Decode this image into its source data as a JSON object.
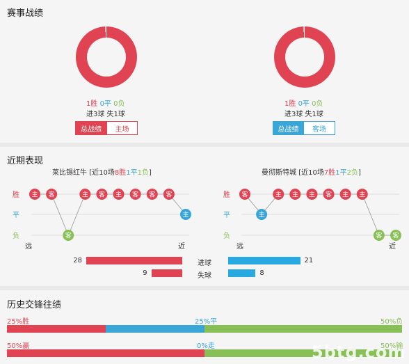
{
  "record": {
    "title": "赛事战绩",
    "left": {
      "result_line": [
        "1胜",
        "0平",
        "0负"
      ],
      "goals_line": "进3球 失1球",
      "btn_overall": "总战绩",
      "btn_venue": "主场",
      "ring_color": "#e04452"
    },
    "right": {
      "result_line": [
        "1胜",
        "0平",
        "0负"
      ],
      "goals_line": "进3球 失1球",
      "btn_overall": "总战绩",
      "btn_venue": "客场",
      "ring_color": "#e04452"
    }
  },
  "recent": {
    "title": "近期表现",
    "left": {
      "team": "莱比锡红牛",
      "summary_prefix": "[近10场",
      "wins": "8胜",
      "draws": "1平",
      "losses": "1负",
      "summary_suffix": "]",
      "row_labels": [
        "胜",
        "平",
        "负"
      ],
      "far": "远",
      "near": "近",
      "matches": [
        {
          "venue": "主",
          "result": "win"
        },
        {
          "venue": "客",
          "result": "win"
        },
        {
          "venue": "客",
          "result": "loss"
        },
        {
          "venue": "主",
          "result": "win"
        },
        {
          "venue": "客",
          "result": "win"
        },
        {
          "venue": "主",
          "result": "win"
        },
        {
          "venue": "客",
          "result": "win"
        },
        {
          "venue": "客",
          "result": "win"
        },
        {
          "venue": "客",
          "result": "win"
        },
        {
          "venue": "主",
          "result": "draw"
        }
      ]
    },
    "right": {
      "team": "曼彻斯特城",
      "summary_prefix": "[近10场",
      "wins": "7胜",
      "draws": "1平",
      "losses": "2负",
      "summary_suffix": "]",
      "row_labels": [
        "胜",
        "平",
        "负"
      ],
      "far": "远",
      "near": "近",
      "matches": [
        {
          "venue": "客",
          "result": "win"
        },
        {
          "venue": "主",
          "result": "draw"
        },
        {
          "venue": "主",
          "result": "win"
        },
        {
          "venue": "主",
          "result": "win"
        },
        {
          "venue": "主",
          "result": "win"
        },
        {
          "venue": "客",
          "result": "win"
        },
        {
          "venue": "主",
          "result": "win"
        },
        {
          "venue": "主",
          "result": "win"
        },
        {
          "venue": "客",
          "result": "loss"
        },
        {
          "venue": "客",
          "result": "loss"
        }
      ]
    },
    "goals": {
      "scored_label": "进球",
      "conceded_label": "失球",
      "left_scored": 28,
      "left_conceded": 9,
      "right_scored": 21,
      "right_conceded": 8,
      "max": 28
    }
  },
  "history": {
    "title": "历史交锋往绩",
    "row1": {
      "left": "25%胜",
      "mid": "25%平",
      "right": "50%负",
      "segments": [
        25,
        25,
        50
      ]
    },
    "row2": {
      "left": "50%赢",
      "mid": "0%走",
      "right": "50%输",
      "segments": [
        50,
        0,
        50
      ]
    }
  },
  "watermark": "5btg.com",
  "colors": {
    "win": "#e04452",
    "draw": "#3aa6d8",
    "loss": "#88c057",
    "conceded_bar": "#29a9e1"
  }
}
